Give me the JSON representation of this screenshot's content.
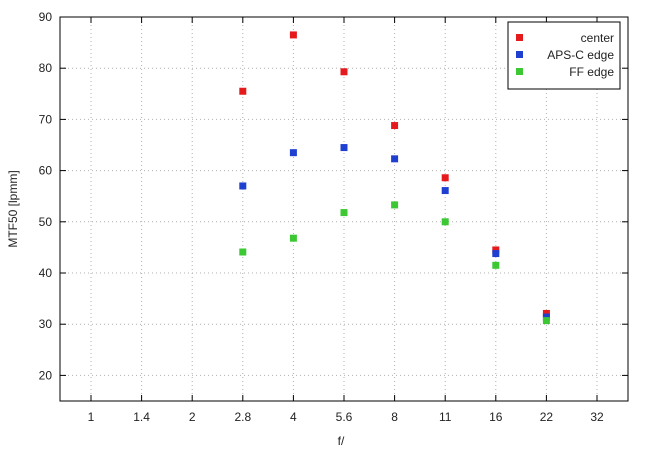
{
  "chart_data": {
    "type": "scatter",
    "title": "",
    "xlabel": "f/",
    "ylabel": "MTF50 [lpmm]",
    "x_scale": "log",
    "x_ticks": [
      "1",
      "1.4",
      "2",
      "2.8",
      "4",
      "5.6",
      "8",
      "11",
      "16",
      "22",
      "32"
    ],
    "ylim": [
      15,
      90
    ],
    "y_ticks": [
      20,
      30,
      40,
      50,
      60,
      70,
      80,
      90
    ],
    "grid": true,
    "legend_position": "top-right",
    "series": [
      {
        "name": "center",
        "color": "#e41a1c",
        "x": [
          "2.8",
          "4",
          "5.6",
          "8",
          "11",
          "16",
          "22"
        ],
        "y": [
          75.5,
          86.5,
          79.3,
          68.8,
          58.6,
          44.5,
          32.1
        ]
      },
      {
        "name": "APS-C edge",
        "color": "#1f3fd1",
        "x": [
          "2.8",
          "4",
          "5.6",
          "8",
          "11",
          "16",
          "22"
        ],
        "y": [
          57.0,
          63.5,
          64.5,
          62.3,
          56.1,
          43.8,
          31.4
        ]
      },
      {
        "name": "FF edge",
        "color": "#3cc832",
        "x": [
          "2.8",
          "4",
          "5.6",
          "8",
          "11",
          "16",
          "22"
        ],
        "y": [
          44.1,
          46.8,
          51.8,
          53.3,
          50.0,
          41.5,
          30.7
        ]
      }
    ]
  }
}
